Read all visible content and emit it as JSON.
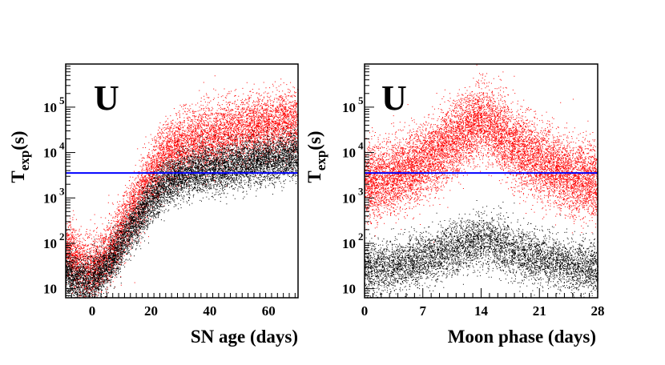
{
  "chart_data": [
    {
      "type": "scatter",
      "panel_label": "U",
      "xlabel": "SN age (days)",
      "ylabel": "T",
      "ylabel_subscript": "exp",
      "ylabel_unit": "(s)",
      "xlim": [
        -9,
        70
      ],
      "ylim_log10": [
        0.8,
        5.95
      ],
      "yscale": "log",
      "x_ticks": [
        0,
        20,
        40,
        60
      ],
      "x_tick_labels": [
        "0",
        "20",
        "40",
        "60"
      ],
      "y_ticks_log10": [
        1,
        2,
        3,
        4,
        5
      ],
      "y_tick_bases": [
        "10",
        "10",
        "10",
        "10",
        "10"
      ],
      "y_tick_exponents": [
        "",
        "2",
        "3",
        "4",
        "5"
      ],
      "hline_log10": 3.55,
      "hline_color": "#0000ff",
      "series": [
        {
          "color": "#ff0000",
          "envelope_x": [
            -9,
            -5,
            -2,
            0,
            3,
            6,
            10,
            15,
            20,
            25,
            30,
            40,
            50,
            60,
            70
          ],
          "envelope_median_log10": [
            1.9,
            1.55,
            1.45,
            1.45,
            1.6,
            1.85,
            2.3,
            2.9,
            3.45,
            3.95,
            4.15,
            4.35,
            4.5,
            4.6,
            4.65
          ],
          "spread_log10": 0.35,
          "n_points": 9000
        },
        {
          "color": "#000000",
          "envelope_x": [
            -9,
            -5,
            -2,
            0,
            3,
            6,
            10,
            15,
            20,
            25,
            30,
            40,
            50,
            60,
            70
          ],
          "envelope_median_log10": [
            1.35,
            1.2,
            1.2,
            1.25,
            1.35,
            1.6,
            2.0,
            2.5,
            2.95,
            3.3,
            3.5,
            3.65,
            3.75,
            3.85,
            3.95
          ],
          "spread_log10": 0.25,
          "n_points": 9000
        }
      ]
    },
    {
      "type": "scatter",
      "panel_label": "U",
      "xlabel": "Moon phase (days)",
      "ylabel": "T",
      "ylabel_subscript": "exp",
      "ylabel_unit": "(s)",
      "xlim": [
        0,
        28
      ],
      "ylim_log10": [
        0.8,
        5.95
      ],
      "yscale": "log",
      "x_ticks": [
        0,
        7,
        14,
        21,
        28
      ],
      "x_tick_labels": [
        "0",
        "7",
        "14",
        "21",
        "28"
      ],
      "y_ticks_log10": [
        1,
        2,
        3,
        4,
        5
      ],
      "y_tick_bases": [
        "10",
        "10",
        "10",
        "10",
        "10"
      ],
      "y_tick_exponents": [
        "",
        "2",
        "3",
        "4",
        "5"
      ],
      "hline_log10": 3.55,
      "hline_color": "#0000ff",
      "series": [
        {
          "color": "#ff0000",
          "peak_x": 14,
          "edge_median_log10": 3.35,
          "peak_median_log10": 4.75,
          "spread_log10": 0.4,
          "n_points": 12000
        },
        {
          "color": "#000000",
          "peak_x": 14,
          "edge_median_log10": 1.45,
          "peak_median_log10": 2.1,
          "spread_log10": 0.28,
          "n_points": 6000
        }
      ]
    }
  ]
}
